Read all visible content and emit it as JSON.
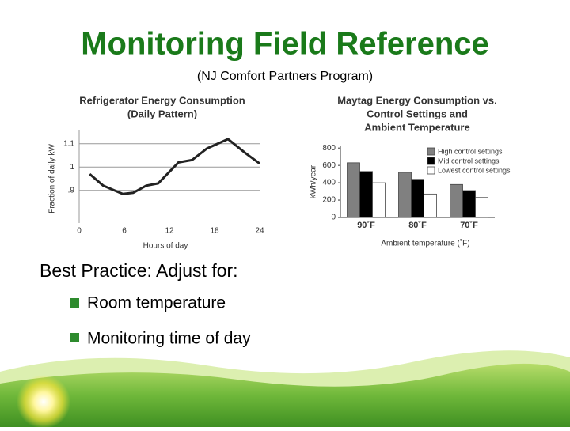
{
  "title": "Monitoring Field Reference",
  "subtitle": "(NJ Comfort Partners Program)",
  "body_heading": "Best Practice:  Adjust for:",
  "bullets": [
    "Room temperature",
    "Monitoring time of day"
  ],
  "chart_data": [
    {
      "type": "line",
      "title": [
        "Refrigerator Energy Consumption",
        "(Daily Pattern)"
      ],
      "x_label": "Hours of day",
      "y_label": "Fraction of daily kW",
      "x": [
        1.4,
        3.2,
        5.8,
        7.2,
        8.9,
        10.5,
        13.2,
        15,
        17,
        19.8,
        22.1,
        24
      ],
      "values": [
        0.97,
        0.92,
        0.885,
        0.89,
        0.92,
        0.93,
        1.02,
        1.03,
        1.08,
        1.12,
        1.06,
        1.015
      ],
      "color": "#222222",
      "xlim": [
        0,
        24
      ],
      "xticks": [
        0,
        6,
        12,
        18,
        24
      ],
      "ylim": [
        0.76,
        1.14
      ],
      "yticks": [
        {
          "value": 0.9,
          "label": ".9"
        },
        1,
        1.1
      ],
      "grid": true
    },
    {
      "type": "bar",
      "title": [
        "Maytag Energy Consumption vs.",
        "Control Settings and",
        "Ambient Temperature"
      ],
      "x_label": "Ambient temperature (˚F)",
      "y_label": "kWh/year",
      "categories": [
        "90˚F",
        "80˚F",
        "70˚F"
      ],
      "series": [
        {
          "name": "High control settings",
          "color": "#808080",
          "values": [
            630,
            520,
            380
          ]
        },
        {
          "name": "Mid control settings",
          "color": "#000000",
          "values": [
            530,
            440,
            310
          ]
        },
        {
          "name": "Lowest control settings",
          "color": "#ffffff",
          "values": [
            400,
            270,
            230
          ]
        }
      ],
      "ylim": [
        0,
        820
      ],
      "yticks": [
        0,
        200,
        400,
        600,
        800
      ],
      "legend": "upper right"
    }
  ]
}
